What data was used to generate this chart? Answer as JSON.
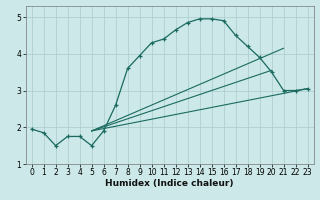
{
  "title": "",
  "xlabel": "Humidex (Indice chaleur)",
  "bg_color": "#cce8e8",
  "line_color": "#1a6a60",
  "grid_color": "#aacccc",
  "xlim": [
    -0.5,
    23.5
  ],
  "ylim": [
    1.0,
    5.3
  ],
  "yticks": [
    1,
    2,
    3,
    4,
    5
  ],
  "xticks": [
    0,
    1,
    2,
    3,
    4,
    5,
    6,
    7,
    8,
    9,
    10,
    11,
    12,
    13,
    14,
    15,
    16,
    17,
    18,
    19,
    20,
    21,
    22,
    23
  ],
  "line1_x": [
    0,
    1,
    2,
    3,
    4,
    5,
    6,
    7,
    8,
    9,
    10,
    11,
    12,
    13,
    14,
    15,
    16,
    17,
    18,
    19,
    20,
    21,
    22,
    23
  ],
  "line1_y": [
    1.95,
    1.85,
    1.5,
    1.75,
    1.75,
    1.5,
    1.9,
    2.6,
    3.6,
    3.95,
    4.3,
    4.4,
    4.65,
    4.85,
    4.95,
    4.95,
    4.9,
    4.5,
    4.2,
    3.9,
    3.5,
    3.0,
    3.0,
    3.05
  ],
  "line2_x": [
    5,
    23
  ],
  "line2_y": [
    1.9,
    3.05
  ],
  "line3_x": [
    5,
    21
  ],
  "line3_y": [
    1.9,
    4.15
  ],
  "line4_x": [
    5,
    20
  ],
  "line4_y": [
    1.9,
    3.55
  ],
  "xlabel_fontsize": 6.5,
  "tick_fontsize": 5.5
}
